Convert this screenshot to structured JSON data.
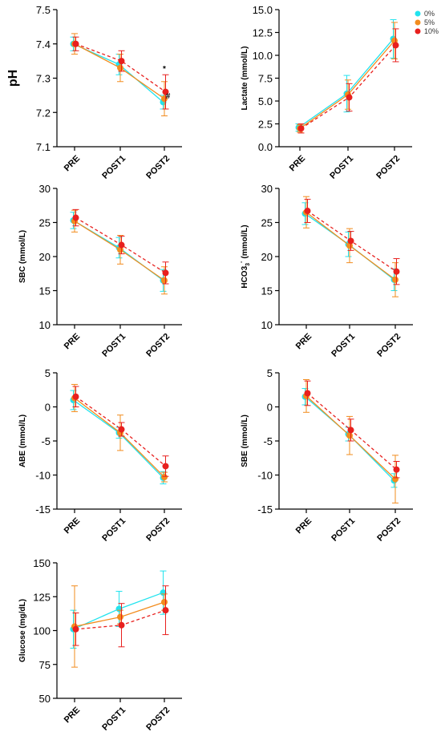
{
  "legend": [
    {
      "key": "0pct",
      "label": "0%",
      "color": "#22e3ee"
    },
    {
      "key": "5pct",
      "label": "5%",
      "color": "#f28c1e"
    },
    {
      "key": "10pct",
      "label": "10%",
      "color": "#e8201e"
    }
  ],
  "chart_data": [
    {
      "type": "line",
      "id": "ph",
      "ylabel": "pH",
      "categories": [
        "PRE",
        "POST1",
        "POST2"
      ],
      "ylim": [
        7.1,
        7.5
      ],
      "yticks": [
        "7.1",
        "7.2",
        "7.3",
        "7.4",
        "7.5"
      ],
      "series": [
        {
          "key": "0pct",
          "values": [
            7.4,
            7.34,
            7.23
          ],
          "errors": [
            0.02,
            0.03,
            0.02
          ]
        },
        {
          "key": "5pct",
          "values": [
            7.4,
            7.33,
            7.24
          ],
          "errors": [
            0.03,
            0.04,
            0.05
          ]
        },
        {
          "key": "10pct",
          "values": [
            7.4,
            7.35,
            7.26
          ],
          "errors": [
            0.02,
            0.03,
            0.05
          ]
        }
      ],
      "annotations": [
        {
          "text": "*",
          "x": 2,
          "y": 7.32
        },
        {
          "text": "#",
          "x": 2.08,
          "y": 7.24
        }
      ]
    },
    {
      "type": "line",
      "id": "lactate",
      "ylabel": "Lactate (mmol/L)",
      "categories": [
        "PRE",
        "POST1",
        "POST2"
      ],
      "ylim": [
        0,
        15
      ],
      "yticks": [
        "0.0",
        "2.5",
        "5.0",
        "7.5",
        "10.0",
        "12.5",
        "15.0"
      ],
      "series": [
        {
          "key": "0pct",
          "values": [
            2.1,
            5.8,
            11.8
          ],
          "errors": [
            0.4,
            2.0,
            2.1
          ]
        },
        {
          "key": "5pct",
          "values": [
            2.0,
            5.7,
            11.6
          ],
          "errors": [
            0.4,
            1.6,
            2.0
          ]
        },
        {
          "key": "10pct",
          "values": [
            2.0,
            5.4,
            11.1
          ],
          "errors": [
            0.5,
            1.5,
            1.8
          ]
        }
      ]
    },
    {
      "type": "line",
      "id": "sbc",
      "ylabel": "SBC (mmol/L)",
      "categories": [
        "PRE",
        "POST1",
        "POST2"
      ],
      "ylim": [
        10,
        30
      ],
      "yticks": [
        "10",
        "15",
        "20",
        "25",
        "30"
      ],
      "series": [
        {
          "key": "0pct",
          "values": [
            25.3,
            21.3,
            16.5
          ],
          "errors": [
            1.2,
            1.5,
            1.6
          ]
        },
        {
          "key": "5pct",
          "values": [
            25.2,
            21.0,
            16.5
          ],
          "errors": [
            1.6,
            2.1,
            2.0
          ]
        },
        {
          "key": "10pct",
          "values": [
            25.7,
            21.7,
            17.6
          ],
          "errors": [
            1.2,
            1.3,
            1.6
          ]
        }
      ]
    },
    {
      "type": "line",
      "id": "hco3",
      "ylabel": "HCO3",
      "ylabel_sub": "3",
      "ylabel_sup": "-",
      "ylabel_unit": "(mmol/L)",
      "categories": [
        "PRE",
        "POST1",
        "POST2"
      ],
      "ylim": [
        10,
        30
      ],
      "yticks": [
        "10",
        "15",
        "20",
        "25",
        "30"
      ],
      "series": [
        {
          "key": "0pct",
          "values": [
            26.3,
            21.8,
            16.6
          ],
          "errors": [
            1.6,
            1.8,
            1.6
          ]
        },
        {
          "key": "5pct",
          "values": [
            26.5,
            21.6,
            16.6
          ],
          "errors": [
            2.3,
            2.5,
            2.5
          ]
        },
        {
          "key": "10pct",
          "values": [
            26.7,
            22.3,
            17.8
          ],
          "errors": [
            1.7,
            1.4,
            1.9
          ]
        }
      ]
    },
    {
      "type": "line",
      "id": "abe",
      "ylabel": "ABE (mmol/L)",
      "categories": [
        "PRE",
        "POST1",
        "POST2"
      ],
      "ylim": [
        -15,
        5
      ],
      "yticks": [
        "-15",
        "-10",
        "-5",
        "0",
        "5"
      ],
      "series": [
        {
          "key": "0pct",
          "values": [
            1.0,
            -3.8,
            -10.4
          ],
          "errors": [
            1.4,
            0.8,
            0.9
          ]
        },
        {
          "key": "5pct",
          "values": [
            1.3,
            -3.8,
            -10.3
          ],
          "errors": [
            2.0,
            2.6,
            0.7
          ]
        },
        {
          "key": "10pct",
          "values": [
            1.5,
            -3.3,
            -8.7
          ],
          "errors": [
            1.5,
            1.0,
            1.5
          ]
        }
      ]
    },
    {
      "type": "line",
      "id": "sbe",
      "ylabel": "SBE (mmol/L)",
      "categories": [
        "PRE",
        "POST1",
        "POST2"
      ],
      "ylim": [
        -15,
        5
      ],
      "yticks": [
        "-15",
        "-10",
        "-5",
        "0",
        "5"
      ],
      "series": [
        {
          "key": "0pct",
          "values": [
            1.5,
            -4.0,
            -10.8
          ],
          "errors": [
            1.2,
            1.0,
            1.0
          ]
        },
        {
          "key": "5pct",
          "values": [
            1.6,
            -4.2,
            -10.6
          ],
          "errors": [
            2.4,
            2.8,
            3.5
          ]
        },
        {
          "key": "10pct",
          "values": [
            2.0,
            -3.4,
            -9.2
          ],
          "errors": [
            1.8,
            1.6,
            1.2
          ]
        }
      ]
    },
    {
      "type": "line",
      "id": "glucose",
      "ylabel": "Glucose (mg/dL)",
      "categories": [
        "PRE",
        "POST1",
        "POST2"
      ],
      "ylim": [
        50,
        150
      ],
      "yticks": [
        "50",
        "75",
        "100",
        "125",
        "150"
      ],
      "series": [
        {
          "key": "0pct",
          "values": [
            101,
            116,
            128
          ],
          "errors": [
            14,
            13,
            16
          ]
        },
        {
          "key": "5pct",
          "values": [
            103,
            110,
            121
          ],
          "errors": [
            30,
            5,
            6
          ]
        },
        {
          "key": "10pct",
          "values": [
            101,
            104,
            115
          ],
          "errors": [
            12,
            16,
            18
          ]
        }
      ]
    }
  ]
}
